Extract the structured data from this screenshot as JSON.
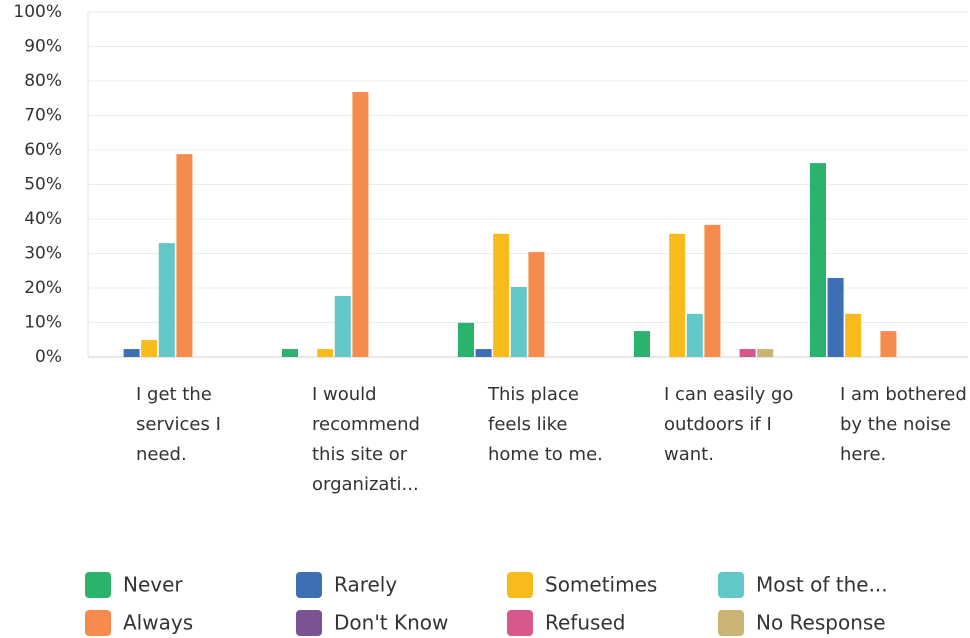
{
  "chart_data": {
    "type": "bar",
    "categories": [
      "I get the services I need.",
      "I would recommend this site or organizati...",
      "This place feels like home to me.",
      "I can easily go outdoors if I want.",
      "I am bothered by the noise here."
    ],
    "series": [
      {
        "name": "Never",
        "color": "#2bb36d",
        "values": [
          0,
          2.3,
          9.9,
          7.5,
          56.2
        ]
      },
      {
        "name": "Rarely",
        "color": "#3e6eb4",
        "values": [
          2.3,
          0,
          2.3,
          0,
          22.9
        ]
      },
      {
        "name": "Sometimes",
        "color": "#f7bb1b",
        "values": [
          4.9,
          2.3,
          35.7,
          35.7,
          12.5
        ]
      },
      {
        "name": "Most of the...",
        "color": "#63c7ca",
        "values": [
          33,
          17.7,
          20.3,
          12.5,
          0
        ]
      },
      {
        "name": "Always",
        "color": "#f68b4d",
        "values": [
          58.8,
          76.8,
          30.4,
          38.3,
          7.5
        ]
      },
      {
        "name": "Don't Know",
        "color": "#7b5294",
        "values": [
          0,
          0,
          0,
          0,
          0
        ]
      },
      {
        "name": "Refused",
        "color": "#d6578c",
        "values": [
          0,
          0,
          0,
          2.3,
          0
        ]
      },
      {
        "name": "No Response",
        "color": "#c9b473",
        "values": [
          0,
          0,
          0,
          2.3,
          0
        ]
      }
    ],
    "ylim": [
      0,
      100
    ],
    "yticks": [
      {
        "value": 0,
        "label": "0%"
      },
      {
        "value": 10,
        "label": "10%"
      },
      {
        "value": 20,
        "label": "20%"
      },
      {
        "value": 30,
        "label": "30%"
      },
      {
        "value": 40,
        "label": "40%"
      },
      {
        "value": 50,
        "label": "50%"
      },
      {
        "value": 60,
        "label": "60%"
      },
      {
        "value": 70,
        "label": "70%"
      },
      {
        "value": 80,
        "label": "80%"
      },
      {
        "value": 90,
        "label": "90%"
      },
      {
        "value": 100,
        "label": "100%"
      }
    ],
    "grid": true
  }
}
